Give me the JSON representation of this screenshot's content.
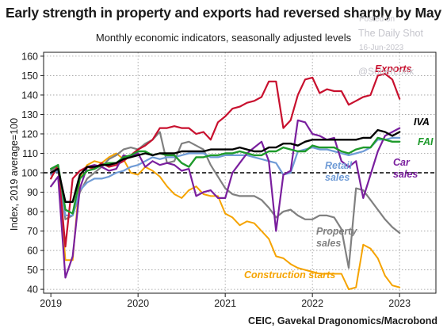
{
  "title": "Early strength in property and exports had reversed sharply by May",
  "subtitle": "Monthly economic indicators, seasonally adjusted levels",
  "watermark": {
    "line1": "Posted on",
    "line2": "The Daily Shot",
    "line3": "16-Jun-2023",
    "line4": "@SoberLook"
  },
  "source": "CEIC, Gavekal Dragonomics/Macrobond",
  "chart_data": {
    "type": "line",
    "title": "Early strength in property and exports had reversed sharply by May",
    "subtitle": "Monthly economic indicators, seasonally adjusted levels",
    "ylabel": "Index, 2019 average=100",
    "xlabel": "",
    "ylim": [
      38,
      162
    ],
    "yticks": [
      40,
      50,
      60,
      70,
      80,
      90,
      100,
      110,
      120,
      130,
      140,
      150,
      160
    ],
    "xlim": [
      "2018-12",
      "2023-06"
    ],
    "xtick_labels": [
      "2019",
      "2020",
      "2021",
      "2022",
      "2023"
    ],
    "xtick_positions": [
      "2019-01",
      "2020-01",
      "2021-01",
      "2022-01",
      "2023-01"
    ],
    "reference_line": {
      "y": 100,
      "style": "dashed"
    },
    "grid": true,
    "start": "2019-01",
    "series": [
      {
        "name": "Exports",
        "color": "#c8102e",
        "values": [
          97,
          104,
          62,
          97,
          101,
          103,
          102,
          105,
          103,
          104,
          106,
          109,
          112,
          114,
          117,
          123,
          123,
          124,
          123,
          123,
          120,
          121,
          117,
          126,
          129,
          133,
          134,
          136,
          137,
          139,
          147,
          147,
          123,
          127,
          140,
          148,
          149,
          141,
          143,
          142,
          142,
          135,
          137,
          139,
          140,
          150,
          151,
          148,
          138
        ]
      },
      {
        "name": "IVA",
        "color": "#000000",
        "values": [
          100,
          102,
          85,
          85,
          99,
          103,
          103,
          104,
          104,
          105,
          107,
          108,
          109,
          110,
          109,
          110,
          110,
          110,
          111,
          111,
          111,
          111,
          112,
          112,
          112,
          112,
          113,
          112,
          111,
          111,
          113,
          113,
          115,
          115,
          114,
          116,
          117,
          117,
          117,
          117,
          117,
          117,
          117,
          118,
          118,
          122,
          121,
          119,
          121
        ]
      },
      {
        "name": "FAI",
        "color": "#1e9a2b",
        "values": [
          102,
          104,
          81,
          79,
          97,
          101,
          102,
          104,
          105,
          105,
          108,
          109,
          111,
          111,
          109,
          110,
          109,
          109,
          105,
          103,
          108,
          108,
          109,
          109,
          110,
          110,
          111,
          110,
          109,
          109,
          111,
          111,
          113,
          112,
          111,
          111,
          114,
          113,
          113,
          113,
          111,
          110,
          112,
          113,
          113,
          118,
          117,
          116,
          116
        ]
      },
      {
        "name": "Retail sales",
        "color": "#6f9bd6",
        "values": [
          99,
          101,
          78,
          78,
          91,
          95,
          97,
          97,
          98,
          100,
          101,
          103,
          104,
          106,
          108,
          107,
          108,
          108,
          109,
          110,
          110,
          110,
          108,
          108,
          109,
          109,
          109,
          109,
          108,
          107,
          106,
          105,
          99,
          100,
          111,
          112,
          113,
          112,
          112,
          111,
          110,
          109,
          110,
          111,
          113,
          117,
          117,
          118,
          118
        ]
      },
      {
        "name": "Car sales",
        "color": "#7a1f9e",
        "values": [
          93,
          98,
          46,
          57,
          92,
          103,
          104,
          103,
          101,
          102,
          109,
          108,
          110,
          103,
          106,
          104,
          105,
          104,
          101,
          102,
          88,
          90,
          91,
          87,
          87,
          100,
          105,
          110,
          113,
          116,
          106,
          70,
          99,
          101,
          127,
          126,
          120,
          119,
          117,
          118,
          106,
          103,
          106,
          87,
          99,
          111,
          119,
          121,
          123
        ]
      },
      {
        "name": "Property sales",
        "color": "#808080",
        "values": [
          101,
          103,
          76,
          78,
          90,
          97,
          100,
          103,
          107,
          109,
          112,
          113,
          112,
          115,
          117,
          121,
          105,
          106,
          115,
          116,
          114,
          112,
          104,
          98,
          92,
          89,
          88,
          88,
          88,
          86,
          82,
          77,
          80,
          81,
          78,
          76,
          76,
          78,
          78,
          77,
          71,
          51,
          92,
          91,
          86,
          81,
          76,
          72,
          69
        ]
      },
      {
        "name": "Construction starts",
        "color": "#f5a300",
        "values": [
          97,
          104,
          55,
          55,
          98,
          104,
          106,
          105,
          108,
          110,
          107,
          100,
          99,
          103,
          101,
          98,
          93,
          89,
          87,
          91,
          93,
          89,
          88,
          88,
          79,
          77,
          73,
          75,
          74,
          70,
          66,
          57,
          56,
          53,
          51,
          50,
          49,
          48,
          48,
          48,
          48,
          40,
          41,
          63,
          61,
          56,
          47,
          42,
          41
        ]
      }
    ],
    "series_labels": [
      {
        "series": "Exports",
        "text": "Exports"
      },
      {
        "series": "IVA",
        "text": "IVA"
      },
      {
        "series": "FAI",
        "text": "FAI"
      },
      {
        "series": "Retail sales",
        "text": "Retail\nsales"
      },
      {
        "series": "Car sales",
        "text": "Car\nsales"
      },
      {
        "series": "Property sales",
        "text": "Property\nsales"
      },
      {
        "series": "Construction starts",
        "text": "Construction starts"
      }
    ]
  }
}
